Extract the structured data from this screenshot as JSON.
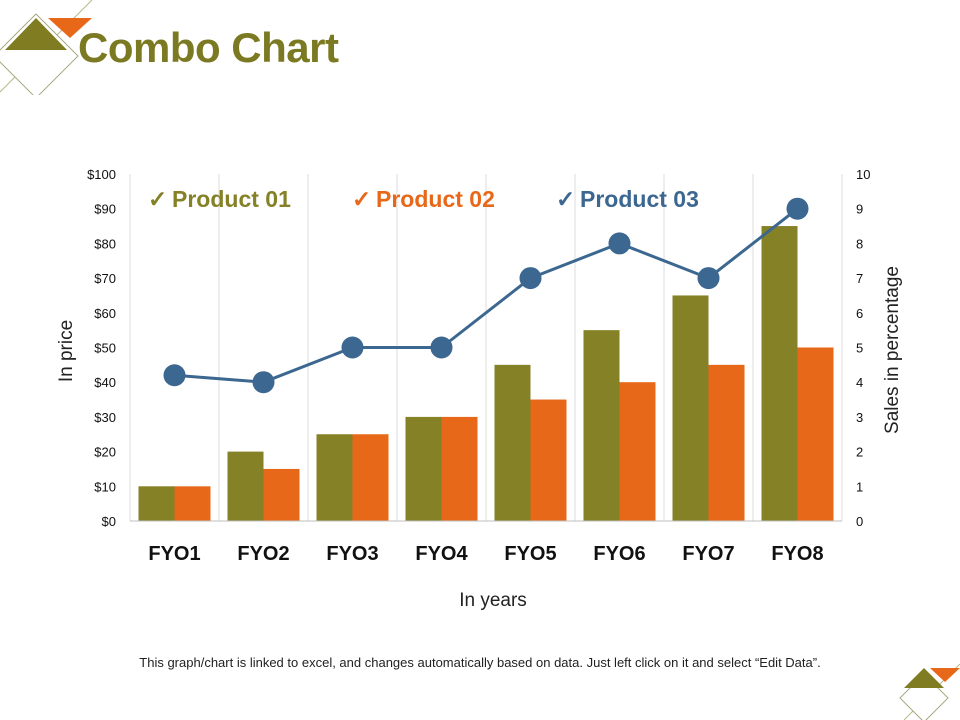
{
  "slide": {
    "title": "Combo Chart",
    "footnote": "This graph/chart is linked to excel, and changes automatically  based on data.  Just left click on it and select “Edit Data”."
  },
  "chart_data": {
    "type": "bar",
    "categories": [
      "FYO1",
      "FYO2",
      "FYO3",
      "FYO4",
      "FYO5",
      "FYO6",
      "FYO7",
      "FYO8"
    ],
    "series": [
      {
        "name": "Product 01",
        "type": "bar",
        "axis": "left",
        "color": "#858126",
        "values": [
          10,
          20,
          25,
          30,
          45,
          55,
          65,
          85
        ]
      },
      {
        "name": "Product 02",
        "type": "bar",
        "axis": "left",
        "color": "#e8681a",
        "values": [
          10,
          15,
          25,
          30,
          35,
          40,
          45,
          50
        ]
      },
      {
        "name": "Product 03",
        "type": "line",
        "axis": "right",
        "color": "#3b6790",
        "values": [
          4.2,
          4,
          5,
          5,
          7,
          8,
          7,
          9
        ]
      }
    ],
    "xlabel": "In years",
    "ylabel": "In price",
    "y2label": "Sales in percentage",
    "ylim": [
      0,
      100
    ],
    "y2lim": [
      0,
      10
    ],
    "yticks": [
      "$0",
      "$10",
      "$20",
      "$30",
      "$40",
      "$50",
      "$60",
      "$70",
      "$80",
      "$90",
      "$100"
    ],
    "y2ticks": [
      "0",
      "1",
      "2",
      "3",
      "4",
      "5",
      "6",
      "7",
      "8",
      "9",
      "10"
    ],
    "legend": {
      "position": "top",
      "marker": "✓"
    },
    "grid": "vertical"
  }
}
